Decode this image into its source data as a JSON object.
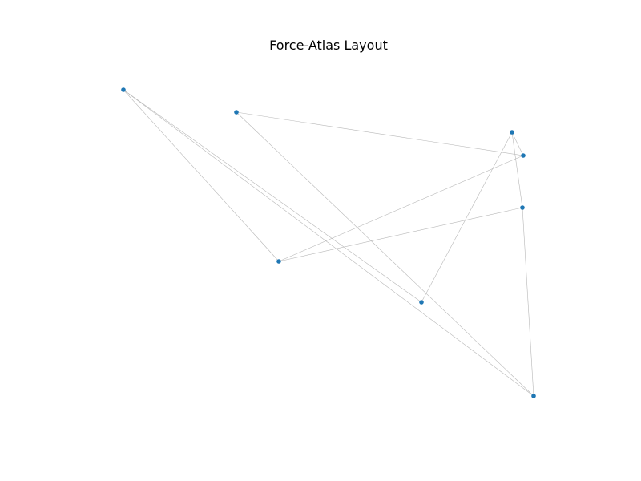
{
  "title": "Force-Atlas Layout",
  "colors": {
    "node": "#1f77b4",
    "edge": "#b8b8b8",
    "background": "#ffffff"
  },
  "graph": {
    "nodes": [
      {
        "id": "n1"
      },
      {
        "id": "n2"
      },
      {
        "id": "n3"
      },
      {
        "id": "n4"
      },
      {
        "id": "n5"
      },
      {
        "id": "n6"
      },
      {
        "id": "n7"
      },
      {
        "id": "n8"
      }
    ],
    "edges": [
      {
        "source": "n1",
        "target": "n6"
      },
      {
        "source": "n1",
        "target": "n7"
      },
      {
        "source": "n1",
        "target": "n8"
      },
      {
        "source": "n2",
        "target": "n4"
      },
      {
        "source": "n2",
        "target": "n8"
      },
      {
        "source": "n3",
        "target": "n4"
      },
      {
        "source": "n3",
        "target": "n5"
      },
      {
        "source": "n3",
        "target": "n7"
      },
      {
        "source": "n4",
        "target": "n6"
      },
      {
        "source": "n5",
        "target": "n6"
      },
      {
        "source": "n5",
        "target": "n8"
      }
    ]
  }
}
